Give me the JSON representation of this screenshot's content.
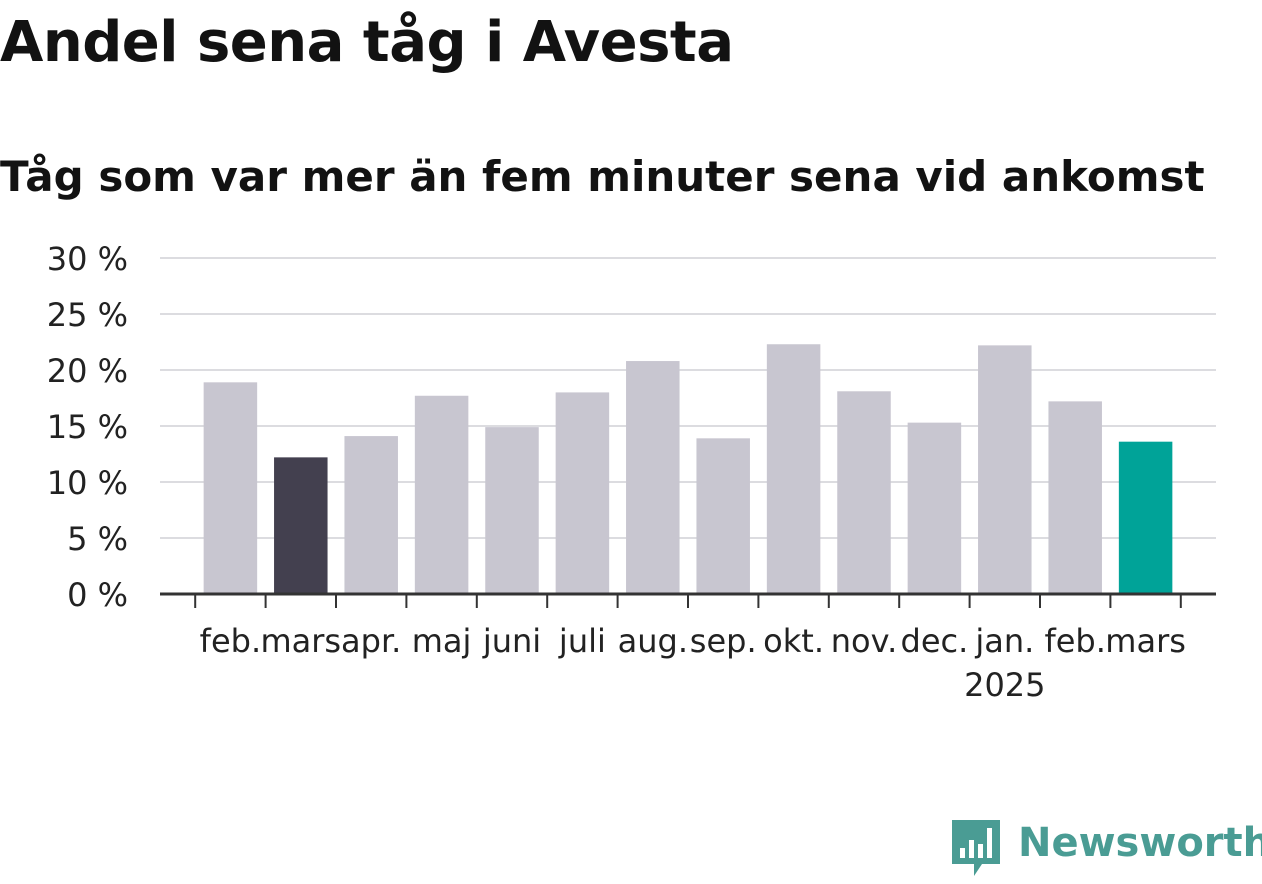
{
  "chart_data": {
    "type": "bar",
    "title": "Andel sena tåg i Avesta",
    "subtitle": "Tåg som var mer än fem minuter sena vid ankomst",
    "categories": [
      "feb.",
      "mars",
      "apr.",
      "maj",
      "juni",
      "juli",
      "aug.",
      "sep.",
      "okt.",
      "nov.",
      "dec.",
      "jan.",
      "feb.",
      "mars"
    ],
    "year_marker": {
      "index": 11,
      "label": "2025"
    },
    "values": [
      18.9,
      12.2,
      14.1,
      17.7,
      14.9,
      18.0,
      20.8,
      13.9,
      22.3,
      18.1,
      15.3,
      22.2,
      17.2,
      13.6
    ],
    "bar_colors": [
      "#c8c6d0",
      "#43404f",
      "#c8c6d0",
      "#c8c6d0",
      "#c8c6d0",
      "#c8c6d0",
      "#c8c6d0",
      "#c8c6d0",
      "#c8c6d0",
      "#c8c6d0",
      "#c8c6d0",
      "#c8c6d0",
      "#c8c6d0",
      "#00a398"
    ],
    "ylim": [
      0,
      30
    ],
    "yticks": [
      0,
      5,
      10,
      15,
      20,
      25,
      30
    ],
    "ytick_labels": [
      "0 %",
      "5 %",
      "10 %",
      "15 %",
      "20 %",
      "25 %",
      "30 %"
    ],
    "xlabel": "",
    "ylabel": "",
    "grid": true,
    "legend": "none"
  },
  "branding": {
    "logo_text": "Newsworthy",
    "logo_icon": "newsworthy-chart-icon",
    "logo_color": "#4a9c94"
  },
  "colors": {
    "grid": "#dcdce0",
    "axis": "#333333",
    "text": "#222222"
  }
}
